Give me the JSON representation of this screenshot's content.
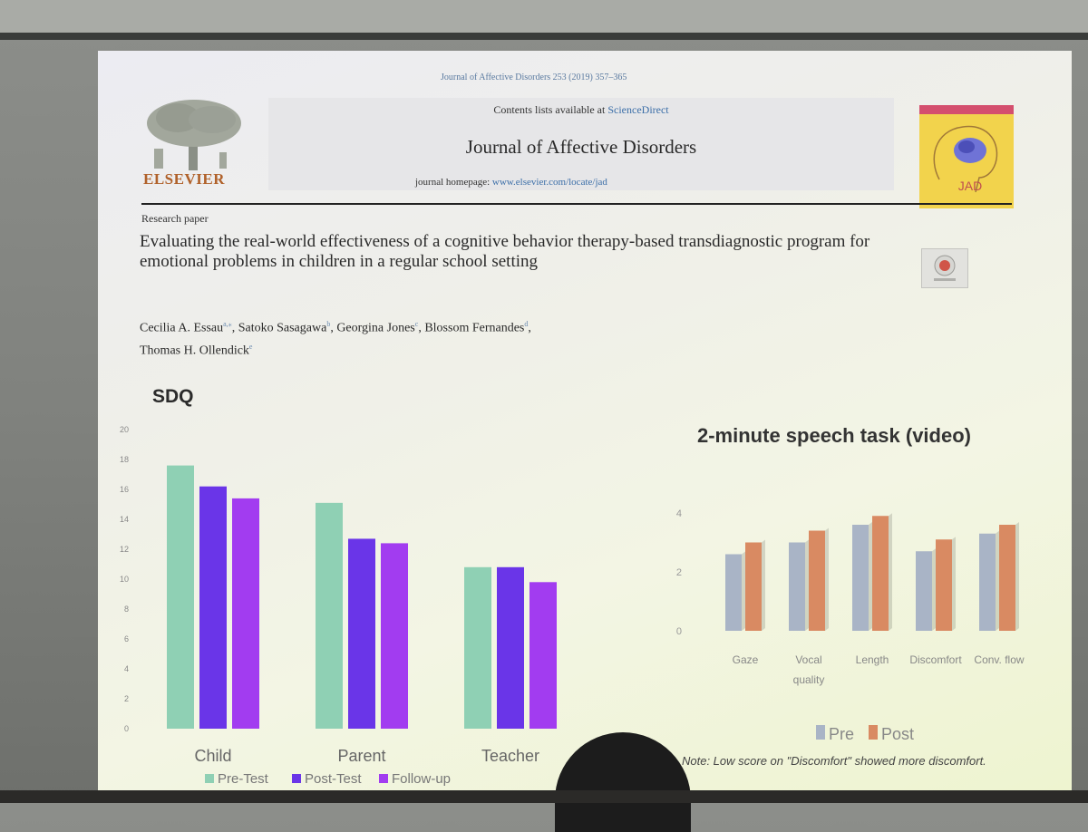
{
  "slide": {
    "journal_reference": "Journal of Affective Disorders 253 (2019) 357–365",
    "contents_prefix": "Contents lists available at ",
    "contents_link": "ScienceDirect",
    "journal_title": "Journal of Affective Disorders",
    "homepage_prefix": "journal homepage: ",
    "homepage_url": "www.elsevier.com/locate/jad",
    "publisher": "ELSEVIER",
    "cover_label": "JAD",
    "research_type": "Research paper",
    "paper_title": "Evaluating the real-world effectiveness of a cognitive behavior therapy-based transdiagnostic program for emotional problems in children in a regular school setting",
    "authors": [
      {
        "name": "Cecilia A. Essau",
        "sup": "a,⁎"
      },
      {
        "name": "Satoko Sasagawa",
        "sup": "b"
      },
      {
        "name": "Georgina Jones",
        "sup": "c"
      },
      {
        "name": "Blossom Fernandes",
        "sup": "d"
      },
      {
        "name": "Thomas H. Ollendick",
        "sup": "e"
      }
    ],
    "sdq_heading": "SDQ",
    "speech_heading": "2-minute speech task (video)",
    "note": "Note: Low score on \"Discomfort\" showed more discomfort."
  },
  "chart_data": [
    {
      "type": "bar",
      "title": "SDQ",
      "categories": [
        "Child",
        "Parent",
        "Teacher"
      ],
      "ylim": [
        0,
        20
      ],
      "yticks": [
        0,
        2,
        4,
        6,
        8,
        10,
        12,
        14,
        16,
        18,
        20
      ],
      "grid": false,
      "legend_position": "bottom",
      "series": [
        {
          "name": "Pre-Test",
          "color": "#8fd0b4",
          "values": [
            17.6,
            15.1,
            10.8
          ]
        },
        {
          "name": "Post-Test",
          "color": "#6a35e8",
          "values": [
            16.2,
            12.7,
            10.8
          ]
        },
        {
          "name": "Follow-up",
          "color": "#a23cf0",
          "values": [
            15.4,
            12.4,
            9.8
          ]
        }
      ]
    },
    {
      "type": "bar",
      "title": "2-minute speech task (video)",
      "categories": [
        "Gaze",
        "Vocal quality",
        "Length",
        "Discomfort",
        "Conv. flow"
      ],
      "ylim": [
        0,
        4
      ],
      "yticks": [
        0,
        2,
        4
      ],
      "grid": false,
      "legend_position": "bottom",
      "series": [
        {
          "name": "Pre",
          "color": "#a9b4c6",
          "values": [
            2.6,
            3.0,
            3.6,
            2.7,
            3.3
          ]
        },
        {
          "name": "Post",
          "color": "#d98a62",
          "values": [
            3.0,
            3.4,
            3.9,
            3.1,
            3.6
          ]
        }
      ]
    }
  ]
}
